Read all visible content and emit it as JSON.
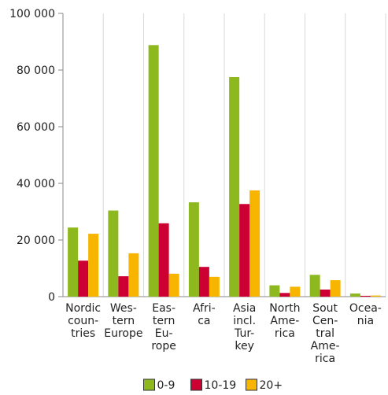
{
  "chart_data": {
    "type": "bar",
    "categories": [
      [
        "Nordic",
        "coun-",
        "tries"
      ],
      [
        "Wes-",
        "tern",
        "Europe"
      ],
      [
        "Eas-",
        "tern",
        "Eu-",
        "rope"
      ],
      [
        "Afri-",
        "ca"
      ],
      [
        "Asia",
        "incl.",
        "Tur-",
        "key"
      ],
      [
        "North",
        "Ame-",
        "rica"
      ],
      [
        "Sout",
        "Cen-",
        "tral",
        "Ame-",
        "rica"
      ],
      [
        "Ocea-",
        "nia"
      ]
    ],
    "series": [
      {
        "name": "0-9",
        "color": "#8db81e",
        "values": [
          24400,
          30400,
          88800,
          33300,
          77500,
          4000,
          7700,
          1100
        ]
      },
      {
        "name": "10-19",
        "color": "#cc0033",
        "values": [
          12700,
          7200,
          25900,
          10500,
          32700,
          1300,
          2500,
          300
        ]
      },
      {
        "name": "20+",
        "color": "#f7b500",
        "values": [
          22200,
          15300,
          8100,
          7000,
          37500,
          3500,
          5800,
          400
        ]
      }
    ],
    "ylim": [
      0,
      100000
    ],
    "yticks": [
      0,
      {
        "value": 20000,
        "label": "20 000"
      },
      {
        "value": 40000,
        "label": "40 000"
      },
      {
        "value": 60000,
        "label": "60 000"
      },
      {
        "value": 80000,
        "label": "80 000"
      },
      {
        "value": 100000,
        "label": "100 000"
      }
    ],
    "grid": true
  }
}
